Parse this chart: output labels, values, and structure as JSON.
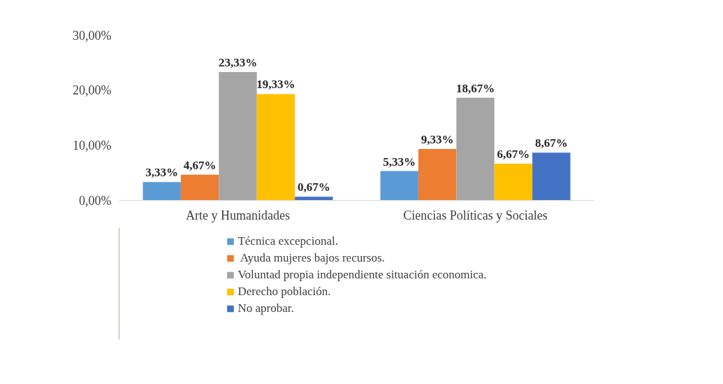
{
  "chart_data": {
    "type": "bar",
    "categories": [
      "Arte y Humanidades",
      "Ciencias Políticas y Sociales"
    ],
    "series": [
      {
        "name": "Técnica excepcional.",
        "color": "#5b9bd5",
        "values": [
          3.33,
          5.33
        ],
        "value_labels": [
          "3,33%",
          "5,33%"
        ]
      },
      {
        "name": " Ayuda mujeres bajos recursos.",
        "color": "#ed7d31",
        "values": [
          4.67,
          9.33
        ],
        "value_labels": [
          "4,67%",
          "9,33%"
        ]
      },
      {
        "name": "Voluntad propia independiente situación economica.",
        "color": "#a5a5a5",
        "values": [
          23.33,
          18.67
        ],
        "value_labels": [
          "23,33%",
          "18,67%"
        ]
      },
      {
        "name": "Derecho población.",
        "color": "#ffc000",
        "values": [
          19.33,
          6.67
        ],
        "value_labels": [
          "19,33%",
          "6,67%"
        ]
      },
      {
        "name": "No aprobar.",
        "color": "#4472c4",
        "values": [
          0.67,
          8.67
        ],
        "value_labels": [
          "0,67%",
          "8,67%"
        ]
      }
    ],
    "ylim": [
      0,
      30
    ],
    "yticks": [
      {
        "value": 0,
        "label": "0,00%"
      },
      {
        "value": 10,
        "label": "10,00%"
      },
      {
        "value": 20,
        "label": "20,00%"
      },
      {
        "value": 30,
        "label": "30,00%"
      }
    ],
    "grid": false,
    "legend": "bottom"
  }
}
